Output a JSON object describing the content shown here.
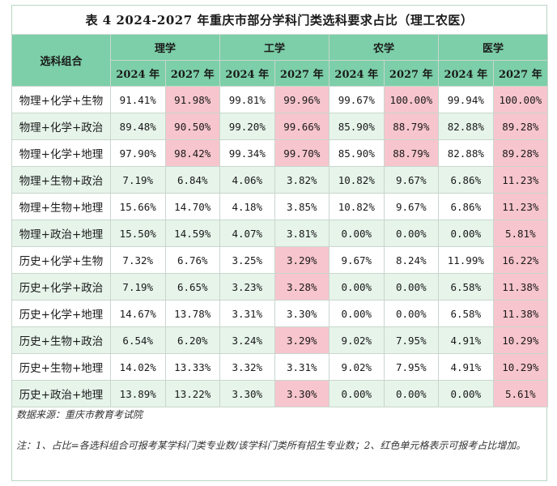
{
  "title": "表 4  2024-2027 年重庆市部分学科门类选科要求占比（理工农医）",
  "header": {
    "combo_label": "选科组合",
    "groups": [
      "理学",
      "工学",
      "农学",
      "医学"
    ],
    "years": [
      "2024 年",
      "2027 年"
    ]
  },
  "rows": [
    {
      "combo": "物理+化学+生物",
      "values": [
        "91.41%",
        "91.98%",
        "99.81%",
        "99.96%",
        "99.67%",
        "100.00%",
        "99.94%",
        "100.00%"
      ],
      "highlight": [
        false,
        true,
        false,
        true,
        false,
        true,
        false,
        true
      ]
    },
    {
      "combo": "物理+化学+政治",
      "values": [
        "89.48%",
        "90.50%",
        "99.20%",
        "99.66%",
        "85.90%",
        "88.79%",
        "82.88%",
        "89.28%"
      ],
      "highlight": [
        false,
        true,
        false,
        true,
        false,
        true,
        false,
        true
      ]
    },
    {
      "combo": "物理+化学+地理",
      "values": [
        "97.90%",
        "98.42%",
        "99.34%",
        "99.70%",
        "85.90%",
        "88.79%",
        "82.88%",
        "89.28%"
      ],
      "highlight": [
        false,
        true,
        false,
        true,
        false,
        true,
        false,
        true
      ]
    },
    {
      "combo": "物理+生物+政治",
      "values": [
        "7.19%",
        "6.84%",
        "4.06%",
        "3.82%",
        "10.82%",
        "9.67%",
        "6.86%",
        "11.23%"
      ],
      "highlight": [
        false,
        false,
        false,
        false,
        false,
        false,
        false,
        true
      ]
    },
    {
      "combo": "物理+生物+地理",
      "values": [
        "15.66%",
        "14.70%",
        "4.18%",
        "3.85%",
        "10.82%",
        "9.67%",
        "6.86%",
        "11.23%"
      ],
      "highlight": [
        false,
        false,
        false,
        false,
        false,
        false,
        false,
        true
      ]
    },
    {
      "combo": "物理+政治+地理",
      "values": [
        "15.50%",
        "14.59%",
        "4.07%",
        "3.81%",
        "0.00%",
        "0.00%",
        "0.00%",
        "5.81%"
      ],
      "highlight": [
        false,
        false,
        false,
        false,
        false,
        false,
        false,
        true
      ]
    },
    {
      "combo": "历史+化学+生物",
      "values": [
        "7.32%",
        "6.76%",
        "3.25%",
        "3.29%",
        "9.67%",
        "8.24%",
        "11.99%",
        "16.22%"
      ],
      "highlight": [
        false,
        false,
        false,
        true,
        false,
        false,
        false,
        true
      ]
    },
    {
      "combo": "历史+化学+政治",
      "values": [
        "7.19%",
        "6.65%",
        "3.23%",
        "3.28%",
        "0.00%",
        "0.00%",
        "6.58%",
        "11.38%"
      ],
      "highlight": [
        false,
        false,
        false,
        true,
        false,
        false,
        false,
        true
      ]
    },
    {
      "combo": "历史+化学+地理",
      "values": [
        "14.67%",
        "13.78%",
        "3.31%",
        "3.30%",
        "0.00%",
        "0.00%",
        "6.58%",
        "11.38%"
      ],
      "highlight": [
        false,
        false,
        false,
        false,
        false,
        false,
        false,
        true
      ]
    },
    {
      "combo": "历史+生物+政治",
      "values": [
        "6.54%",
        "6.20%",
        "3.24%",
        "3.29%",
        "9.02%",
        "7.95%",
        "4.91%",
        "10.29%"
      ],
      "highlight": [
        false,
        false,
        false,
        true,
        false,
        false,
        false,
        true
      ]
    },
    {
      "combo": "历史+生物+地理",
      "values": [
        "14.02%",
        "13.33%",
        "3.32%",
        "3.31%",
        "9.02%",
        "7.95%",
        "4.91%",
        "10.29%"
      ],
      "highlight": [
        false,
        false,
        false,
        false,
        false,
        false,
        false,
        true
      ]
    },
    {
      "combo": "历史+政治+地理",
      "values": [
        "13.89%",
        "13.22%",
        "3.30%",
        "3.30%",
        "0.00%",
        "0.00%",
        "0.00%",
        "5.61%"
      ],
      "highlight": [
        false,
        false,
        false,
        true,
        false,
        false,
        false,
        true
      ]
    }
  ],
  "notes": {
    "source": "数据来源：重庆市教育考试院",
    "note": "注：1、占比=各选科组合可报考某学科门类专业数/该学科门类所有招生专业数；2、红色单元格表示可报考占比增加。"
  },
  "colors": {
    "header_bg": "#7ccfa8",
    "alt_row_bg": "#e6f4ea",
    "highlight_bg": "#f7c5cd"
  }
}
